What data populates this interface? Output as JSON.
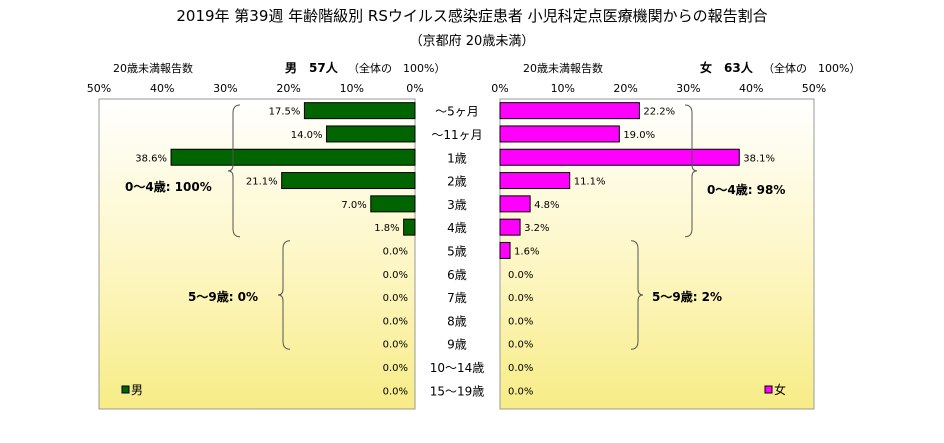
{
  "title": "2019年 第39週 年齢階級別 RSウイルス感染症患者 小児科定点医療機関からの報告割合",
  "subtitle": "（京都府 20歳未満）",
  "left_header": {
    "reports_label": "20歳未満報告数",
    "sex_count": "男　57人",
    "share_label": "（全体の　100%）"
  },
  "right_header": {
    "reports_label": "20歳未満報告数",
    "sex_count": "女　63人",
    "share_label": "（全体の　100%）"
  },
  "chart_data": {
    "type": "bar",
    "orientation": "horizontal-population-pyramid",
    "categories": [
      "～5ヶ月",
      "～11ヶ月",
      "1歳",
      "2歳",
      "3歳",
      "4歳",
      "5歳",
      "6歳",
      "7歳",
      "8歳",
      "9歳",
      "10～14歳",
      "15～19歳"
    ],
    "series": [
      {
        "name": "男",
        "color": "#006400",
        "values": [
          17.5,
          14.0,
          38.6,
          21.1,
          7.0,
          1.8,
          0.0,
          0.0,
          0.0,
          0.0,
          0.0,
          0.0,
          0.0
        ],
        "labels": [
          "17.5%",
          "14.0%",
          "38.6%",
          "21.1%",
          "7.0%",
          "1.8%",
          "0.0%",
          "0.0%",
          "0.0%",
          "0.0%",
          "0.0%",
          "0.0%",
          "0.0%"
        ]
      },
      {
        "name": "女",
        "color": "#ff00ff",
        "values": [
          22.2,
          19.0,
          38.1,
          11.1,
          4.8,
          3.2,
          1.6,
          0.0,
          0.0,
          0.0,
          0.0,
          0.0,
          0.0
        ],
        "labels": [
          "22.2%",
          "19.0%",
          "38.1%",
          "11.1%",
          "4.8%",
          "3.2%",
          "1.6%",
          "0.0%",
          "0.0%",
          "0.0%",
          "0.0%",
          "0.0%",
          "0.0%"
        ]
      }
    ],
    "xlim": [
      0,
      50
    ],
    "x_ticks": [
      "50%",
      "40%",
      "30%",
      "20%",
      "10%",
      "0%"
    ],
    "x_ticks_right": [
      "0%",
      "10%",
      "20%",
      "30%",
      "40%",
      "50%"
    ],
    "annotations": {
      "male_0_4": "0～4歳: 100%",
      "male_5_9": "5～9歳: 0%",
      "female_0_4": "0～4歳: 98%",
      "female_5_9": "5～9歳: 2%"
    },
    "legend": {
      "male": "男",
      "female": "女"
    },
    "grid": false
  }
}
